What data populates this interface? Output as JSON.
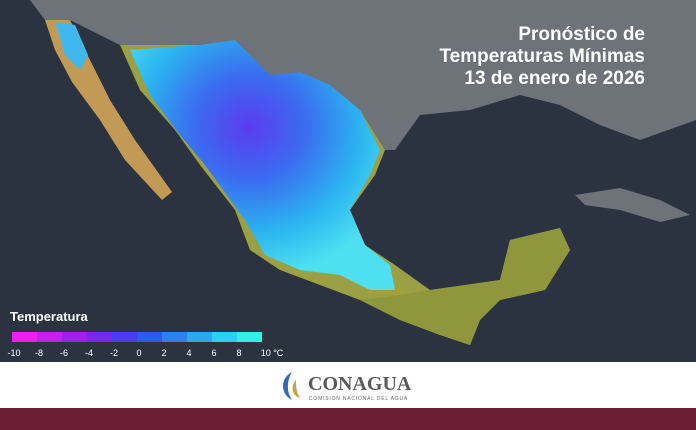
{
  "title": {
    "lines": [
      "Pronóstico de",
      "Temperaturas Mínimas",
      "13 de enero de 2026"
    ]
  },
  "legend": {
    "title": "Temperatura",
    "labels": [
      "-10",
      "-8",
      "-6",
      "-4",
      "-2",
      "0",
      "2",
      "4",
      "6",
      "8",
      "10 °C"
    ]
  },
  "footer": {
    "logo_name": "CONAGUA",
    "logo_subtitle": "COMISIÓN NACIONAL DEL AGUA"
  }
}
